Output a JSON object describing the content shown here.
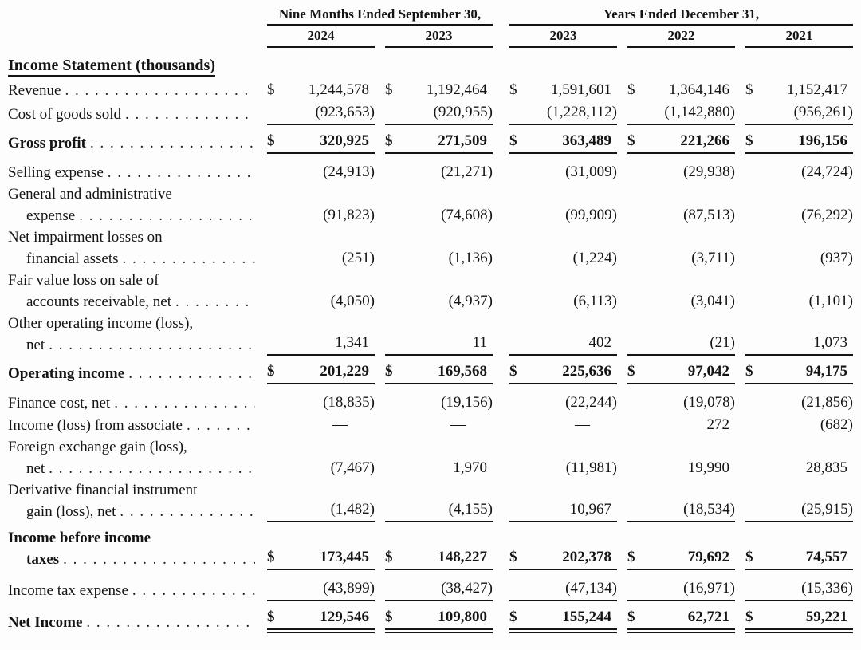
{
  "page": {
    "background": "#fdfdfd",
    "text_color": "#141414"
  },
  "table": {
    "currency_symbol": "$",
    "col_groups": [
      {
        "title": "Nine Months Ended September 30,",
        "years": [
          "2024",
          "2023"
        ]
      },
      {
        "title": "Years Ended December 31,",
        "years": [
          "2023",
          "2022",
          "2021"
        ]
      }
    ],
    "section_heading": "Income Statement (thousands)",
    "rows": [
      {
        "label": "Revenue",
        "label2": null,
        "bold": false,
        "dollar": true,
        "rule": "none",
        "total": false,
        "values": [
          "1,244,578",
          "1,192,464",
          "1,591,601",
          "1,364,146",
          "1,152,417"
        ]
      },
      {
        "label": "Cost of goods sold",
        "label2": null,
        "bold": false,
        "dollar": false,
        "rule": "single",
        "total": false,
        "values": [
          "(923,653)",
          "(920,955)",
          "(1,228,112)",
          "(1,142,880)",
          "(956,261)"
        ]
      },
      {
        "label": "Gross profit",
        "label2": null,
        "bold": true,
        "dollar": true,
        "rule": "single",
        "total": true,
        "values": [
          "320,925",
          "271,509",
          "363,489",
          "221,266",
          "196,156"
        ]
      },
      {
        "label": "Selling expense",
        "label2": null,
        "bold": false,
        "dollar": false,
        "rule": "none",
        "total": false,
        "values": [
          "(24,913)",
          "(21,271)",
          "(31,009)",
          "(29,938)",
          "(24,724)"
        ]
      },
      {
        "label": "General and administrative",
        "label2": "expense",
        "bold": false,
        "dollar": false,
        "rule": "none",
        "total": false,
        "values": [
          "(91,823)",
          "(74,608)",
          "(99,909)",
          "(87,513)",
          "(76,292)"
        ]
      },
      {
        "label": "Net impairment losses on",
        "label2": "financial assets",
        "bold": false,
        "dollar": false,
        "rule": "none",
        "total": false,
        "values": [
          "(251)",
          "(1,136)",
          "(1,224)",
          "(3,711)",
          "(937)"
        ]
      },
      {
        "label": "Fair value loss on sale of",
        "label2": "accounts receivable, net",
        "bold": false,
        "dollar": false,
        "rule": "none",
        "total": false,
        "values": [
          "(4,050)",
          "(4,937)",
          "(6,113)",
          "(3,041)",
          "(1,101)"
        ]
      },
      {
        "label": "Other operating income (loss),",
        "label2": "net",
        "bold": false,
        "dollar": false,
        "rule": "single",
        "total": false,
        "values": [
          "1,341",
          "11",
          "402",
          "(21)",
          "1,073"
        ]
      },
      {
        "label": "Operating income",
        "label2": null,
        "bold": true,
        "dollar": true,
        "rule": "single",
        "total": true,
        "values": [
          "201,229",
          "169,568",
          "225,636",
          "97,042",
          "94,175"
        ]
      },
      {
        "label": "Finance cost, net",
        "label2": null,
        "bold": false,
        "dollar": false,
        "rule": "none",
        "total": false,
        "values": [
          "(18,835)",
          "(19,156)",
          "(22,244)",
          "(19,078)",
          "(21,856)"
        ]
      },
      {
        "label": "Income (loss) from associate",
        "label2": null,
        "bold": false,
        "dollar": false,
        "rule": "none",
        "total": false,
        "values": [
          "—",
          "—",
          "—",
          "272",
          "(682)"
        ]
      },
      {
        "label": "Foreign exchange gain (loss),",
        "label2": "net",
        "bold": false,
        "dollar": false,
        "rule": "none",
        "total": false,
        "values": [
          "(7,467)",
          "1,970",
          "(11,981)",
          "19,990",
          "28,835"
        ]
      },
      {
        "label": "Derivative financial instrument",
        "label2": "gain (loss), net",
        "bold": false,
        "dollar": false,
        "rule": "single",
        "total": false,
        "values": [
          "(1,482)",
          "(4,155)",
          "10,967",
          "(18,534)",
          "(25,915)"
        ]
      },
      {
        "label": "Income before income",
        "label2": "taxes",
        "bold": true,
        "dollar": true,
        "rule": "single",
        "total": true,
        "values": [
          "173,445",
          "148,227",
          "202,378",
          "79,692",
          "74,557"
        ]
      },
      {
        "label": "Income tax expense",
        "label2": null,
        "bold": false,
        "dollar": false,
        "rule": "single",
        "total": false,
        "values": [
          "(43,899)",
          "(38,427)",
          "(47,134)",
          "(16,971)",
          "(15,336)"
        ]
      },
      {
        "label": "Net Income",
        "label2": null,
        "bold": true,
        "dollar": true,
        "rule": "double",
        "total": true,
        "values": [
          "129,546",
          "109,800",
          "155,244",
          "62,721",
          "59,221"
        ]
      }
    ]
  }
}
